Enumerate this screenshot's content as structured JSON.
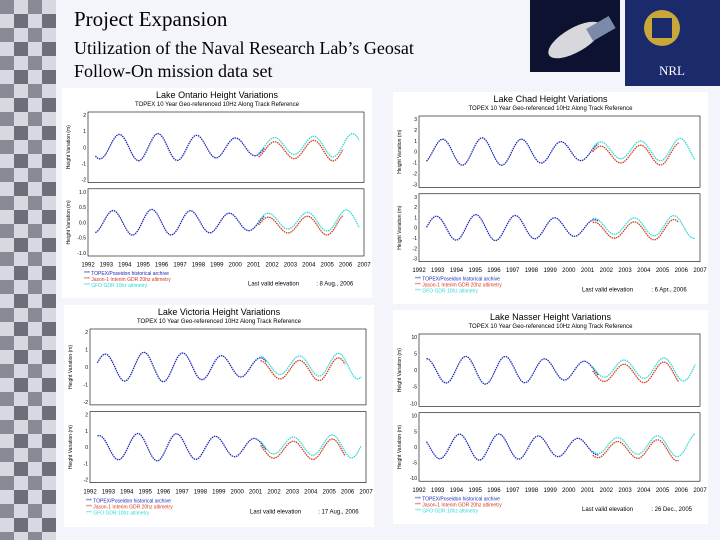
{
  "header": {
    "title": "Project Expansion",
    "subtitle": [
      "Utilization of the Naval Research Lab’s Geosat",
      "Follow-On mission data set"
    ],
    "logo_label": "NRL"
  },
  "panels": [
    {
      "title": "Lake Ontario Height Variations",
      "subtitle": "TOPEX 10 Year Geo-referenced 10Hz Along Track Reference",
      "y_label": "Height Variation (m)",
      "top_yticks": [
        "2",
        "1",
        "0",
        "-1",
        "-2"
      ],
      "bottom_yticks": [
        "1.0",
        "0.5",
        "0.0",
        "-0.5",
        "-1.0"
      ],
      "xticks": [
        "1992",
        "1993",
        "1994",
        "1995",
        "1996",
        "1997",
        "1998",
        "1999",
        "2000",
        "2001",
        "2002",
        "2003",
        "2004",
        "2005",
        "2006",
        "2007"
      ],
      "legend": [
        "*** TOPEX/Poseidon historical archive",
        "*** Jason-1 Interim GDR 20hz altimetry",
        "*** GFO GDR 10hz altimetry"
      ],
      "last_valid": "Last valid elevation",
      "last_date": ": 8 Aug., 2006"
    },
    {
      "title": "Lake Chad Height Variations",
      "subtitle": "TOPEX 10 Year Geo-referenced 10Hz Along Track Reference",
      "y_label": "Height Variation (m)",
      "top_yticks": [
        "3",
        "2",
        "1",
        "0",
        "-1",
        "-2",
        "-3"
      ],
      "bottom_yticks": [
        "3",
        "2",
        "1",
        "0",
        "-1",
        "-2",
        "-3"
      ],
      "xticks": [
        "1992",
        "1993",
        "1994",
        "1995",
        "1996",
        "1997",
        "1998",
        "1999",
        "2000",
        "2001",
        "2002",
        "2003",
        "2004",
        "2005",
        "2006",
        "2007"
      ],
      "legend": [
        "*** TOPEX/Poseidon historical archive",
        "*** Jason-1 Interim GDR 20hz altimetry",
        "*** GFO GDR 10hz altimetry"
      ],
      "last_valid": "Last valid elevation",
      "last_date": ": 6 Apr., 2006"
    },
    {
      "title": "Lake Victoria Height Variations",
      "subtitle": "TOPEX 10 Year Geo-referenced 10Hz Along Track Reference",
      "y_label": "Height Variation (m)",
      "top_yticks": [
        "2",
        "1",
        "0",
        "-1",
        "-2"
      ],
      "bottom_yticks": [
        "2",
        "1",
        "0",
        "-1",
        "-2"
      ],
      "xticks": [
        "1992",
        "1993",
        "1994",
        "1995",
        "1996",
        "1997",
        "1998",
        "1999",
        "2000",
        "2001",
        "2002",
        "2003",
        "2004",
        "2005",
        "2006",
        "2007"
      ],
      "legend": [
        "*** TOPEX/Poseidon historical archive",
        "*** Jason-1 Interim GDR 20hz altimetry",
        "*** GFO GDR 10hz altimetry"
      ],
      "last_valid": "Last valid elevation",
      "last_date": ": 17 Aug., 2006"
    },
    {
      "title": "Lake Nasser Height Variations",
      "subtitle": "TOPEX 10 Year Geo-referenced 10Hz Along Track Reference",
      "y_label": "Height Variation (m)",
      "top_yticks": [
        "10",
        "5",
        "0",
        "-5",
        "-10"
      ],
      "bottom_yticks": [
        "10",
        "5",
        "0",
        "-5",
        "-10"
      ],
      "xticks": [
        "1992",
        "1993",
        "1994",
        "1995",
        "1996",
        "1997",
        "1998",
        "1999",
        "2000",
        "2001",
        "2002",
        "2003",
        "2004",
        "2005",
        "2006",
        "2007"
      ],
      "legend": [
        "*** TOPEX/Poseidon historical archive",
        "*** Jason-1 Interim GDR 20hz altimetry",
        "*** GFO GDR 10hz altimetry"
      ],
      "last_valid": "Last valid elevation",
      "last_date": ": 26 Dec., 2005"
    }
  ]
}
